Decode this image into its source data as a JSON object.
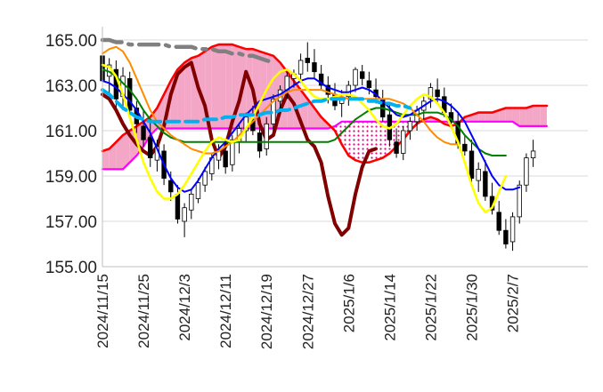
{
  "chart_data": {
    "type": "line",
    "subtype": "ichimoku-candlestick",
    "title": "",
    "xlabel": "",
    "ylabel": "",
    "ylim": [
      155.0,
      165.0
    ],
    "grid": true,
    "legend": "none",
    "y_ticks": [
      "165.00",
      "163.00",
      "161.00",
      "159.00",
      "157.00",
      "155.00"
    ],
    "x_ticks": [
      "2024/11/15",
      "2024/11/25",
      "2024/12/3",
      "2024/12/11",
      "2024/12/19",
      "2024/12/27",
      "2025/1/6",
      "2025/1/14",
      "2025/1/22",
      "2025/1/30",
      "2025/2/7"
    ],
    "x_tick_index": [
      0,
      6,
      12,
      18,
      24,
      30,
      36,
      42,
      48,
      54,
      60
    ],
    "n_points": 72,
    "colors": {
      "cloud_bullish": "#f4a6c6",
      "cloud_bearish": "#f4a6c6",
      "senkou_a": "#ff0000",
      "senkou_b": "#ff00ff",
      "tenkan": "#0000ff",
      "kijun": "#008000",
      "chikou": "#800000",
      "ma_short": "#ffff00",
      "ma_mid": "#ff8c00",
      "ma_long": "#808080",
      "ma_dashed": "#00b0f0",
      "candle_up": "#ffffff",
      "candle_down": "#000000"
    },
    "candles": [
      [
        164.3,
        164.6,
        162.8,
        163.2
      ],
      [
        163.4,
        164.2,
        162.6,
        163.9
      ],
      [
        163.7,
        164.1,
        162.0,
        162.4
      ],
      [
        162.5,
        163.8,
        161.9,
        163.4
      ],
      [
        163.3,
        163.6,
        161.6,
        161.9
      ],
      [
        162.0,
        162.3,
        160.9,
        161.3
      ],
      [
        161.2,
        161.9,
        160.3,
        160.6
      ],
      [
        160.7,
        161.4,
        159.4,
        159.8
      ],
      [
        159.7,
        160.6,
        159.2,
        160.3
      ],
      [
        160.1,
        160.4,
        158.6,
        158.9
      ],
      [
        158.8,
        159.2,
        157.9,
        158.3
      ],
      [
        158.2,
        158.6,
        156.9,
        157.1
      ],
      [
        157.0,
        157.8,
        156.3,
        157.6
      ],
      [
        157.5,
        158.4,
        157.1,
        158.2
      ],
      [
        158.0,
        158.9,
        157.8,
        158.7
      ],
      [
        158.6,
        159.4,
        158.3,
        159.2
      ],
      [
        159.1,
        160.0,
        158.8,
        159.8
      ],
      [
        159.7,
        160.4,
        159.3,
        160.1
      ],
      [
        160.1,
        160.5,
        159.1,
        159.4
      ],
      [
        159.5,
        160.8,
        159.2,
        160.6
      ],
      [
        160.5,
        161.3,
        160.0,
        161.1
      ],
      [
        161.0,
        161.8,
        160.5,
        161.6
      ],
      [
        161.5,
        162.1,
        160.8,
        161.0
      ],
      [
        160.9,
        161.2,
        159.8,
        160.1
      ],
      [
        160.2,
        161.6,
        159.9,
        161.3
      ],
      [
        161.3,
        162.6,
        161.0,
        162.4
      ],
      [
        162.3,
        163.0,
        161.8,
        162.8
      ],
      [
        162.8,
        163.6,
        162.4,
        163.4
      ],
      [
        163.3,
        163.7,
        162.9,
        163.5
      ],
      [
        163.5,
        164.4,
        163.1,
        164.1
      ],
      [
        164.2,
        164.9,
        163.6,
        164.0
      ],
      [
        164.0,
        164.6,
        163.3,
        163.6
      ],
      [
        163.5,
        163.9,
        162.8,
        163.0
      ],
      [
        163.0,
        163.4,
        162.2,
        162.6
      ],
      [
        162.6,
        163.1,
        161.9,
        162.1
      ],
      [
        162.2,
        162.8,
        161.6,
        162.4
      ],
      [
        162.5,
        163.2,
        162.1,
        163.0
      ],
      [
        163.0,
        163.8,
        162.7,
        163.7
      ],
      [
        163.6,
        163.9,
        163.0,
        163.3
      ],
      [
        163.2,
        163.6,
        162.6,
        162.9
      ],
      [
        162.8,
        163.3,
        162.2,
        162.5
      ],
      [
        162.4,
        162.8,
        161.4,
        161.6
      ],
      [
        161.7,
        162.2,
        160.3,
        160.6
      ],
      [
        160.5,
        161.1,
        159.8,
        160.0
      ],
      [
        160.0,
        161.2,
        159.7,
        161.0
      ],
      [
        161.0,
        161.6,
        160.6,
        161.4
      ],
      [
        161.4,
        162.1,
        161.0,
        161.9
      ],
      [
        161.9,
        162.5,
        161.5,
        162.3
      ],
      [
        162.4,
        163.1,
        162.0,
        162.9
      ],
      [
        162.8,
        163.3,
        162.2,
        162.5
      ],
      [
        162.5,
        162.9,
        161.6,
        161.8
      ],
      [
        161.8,
        162.2,
        161.1,
        161.4
      ],
      [
        161.4,
        161.8,
        160.2,
        160.4
      ],
      [
        160.4,
        160.8,
        159.9,
        160.1
      ],
      [
        160.1,
        160.6,
        158.6,
        158.9
      ],
      [
        158.8,
        159.6,
        158.3,
        159.3
      ],
      [
        159.2,
        159.7,
        157.9,
        158.1
      ],
      [
        158.1,
        158.7,
        157.3,
        157.5
      ],
      [
        157.4,
        157.9,
        156.4,
        156.6
      ],
      [
        156.6,
        157.1,
        155.8,
        156.0
      ],
      [
        156.1,
        157.4,
        155.7,
        157.2
      ],
      [
        157.2,
        158.8,
        156.9,
        158.6
      ],
      [
        158.6,
        160.0,
        158.3,
        159.8
      ],
      [
        159.8,
        160.6,
        159.4,
        160.1
      ]
    ],
    "series": [
      {
        "key": "tenkan",
        "values": [
          163.2,
          163.1,
          162.9,
          162.6,
          162.3,
          161.9,
          161.4,
          160.9,
          160.2,
          159.5,
          158.9,
          158.5,
          158.3,
          158.4,
          158.8,
          159.3,
          159.8,
          160.2,
          160.5,
          160.9,
          161.3,
          161.7,
          162.0,
          162.3,
          162.4,
          162.5,
          162.6,
          162.8,
          163.0,
          163.2,
          163.3,
          163.3,
          163.1,
          162.9,
          162.8,
          162.7,
          162.7,
          162.8,
          162.9,
          162.8,
          162.6,
          162.3,
          162.0,
          161.7,
          161.6,
          161.7,
          161.9,
          162.1,
          162.3,
          162.4,
          162.3,
          162.1,
          161.8,
          161.4,
          160.8,
          160.2,
          159.6,
          159.0,
          158.6,
          158.4,
          158.4,
          158.5
        ]
      },
      {
        "key": "kijun",
        "values": [
          163.7,
          163.6,
          163.4,
          163.1,
          162.8,
          162.4,
          161.9,
          161.5,
          161.2,
          160.9,
          160.7,
          160.6,
          160.5,
          160.5,
          160.5,
          160.5,
          160.5,
          160.5,
          160.5,
          160.5,
          160.5,
          160.5,
          160.5,
          160.5,
          160.5,
          160.5,
          160.5,
          160.5,
          160.5,
          160.5,
          160.5,
          160.5,
          160.5,
          160.5,
          160.6,
          160.9,
          161.2,
          161.5,
          161.7,
          161.9,
          162.0,
          162.0,
          161.9,
          161.8,
          161.7,
          161.7,
          161.7,
          161.8,
          161.8,
          161.8,
          161.7,
          161.5,
          161.2,
          160.8,
          160.5,
          160.2,
          160.0,
          159.9,
          159.9,
          159.9
        ]
      },
      {
        "key": "senkou_a",
        "values": [
          160.1,
          160.2,
          160.5,
          160.8,
          161.0,
          161.2,
          161.4,
          161.6,
          162.0,
          162.6,
          163.2,
          163.7,
          164.0,
          164.2,
          164.3,
          164.5,
          164.7,
          164.8,
          164.8,
          164.8,
          164.7,
          164.6,
          164.6,
          164.5,
          164.4,
          164.3,
          164.0,
          163.6,
          163.2,
          162.8,
          162.4,
          162.0,
          161.6,
          161.3,
          161.0,
          160.4,
          159.9,
          159.7,
          159.6,
          159.6,
          159.7,
          159.8,
          160.0,
          160.3,
          160.6,
          161.0,
          161.3,
          161.5,
          161.6,
          161.5,
          161.3,
          161.2,
          161.3,
          161.6,
          161.7,
          161.8,
          161.8,
          161.8,
          161.9,
          162.0,
          162.0,
          162.0,
          162.0,
          162.1,
          162.1,
          162.1
        ]
      },
      {
        "key": "senkou_b",
        "values": [
          159.3,
          159.3,
          159.3,
          159.3,
          159.6,
          159.9,
          160.3,
          160.8,
          161.1,
          161.1,
          161.1,
          161.1,
          161.1,
          161.1,
          161.1,
          161.1,
          161.1,
          161.1,
          161.1,
          161.1,
          161.1,
          161.1,
          161.1,
          161.1,
          161.1,
          161.1,
          161.1,
          161.1,
          161.1,
          161.1,
          161.1,
          161.1,
          161.1,
          161.1,
          161.2,
          161.4,
          161.4,
          161.4,
          161.4,
          161.4,
          161.4,
          161.4,
          161.4,
          161.4,
          161.4,
          161.4,
          161.4,
          161.4,
          161.4,
          161.4,
          161.4,
          161.4,
          161.4,
          161.4,
          161.4,
          161.4,
          161.4,
          161.4,
          161.4,
          161.4,
          161.4,
          161.2,
          161.2,
          161.2,
          161.2,
          161.2
        ]
      },
      {
        "key": "chikou",
        "values": [
          162.6,
          162.4,
          161.9,
          161.3,
          160.8,
          160.4,
          160.1,
          159.9,
          160.3,
          161.2,
          162.6,
          163.5,
          163.8,
          164.0,
          162.9,
          162.1,
          160.6,
          159.8,
          160.3,
          161.4,
          162.3,
          163.6,
          162.8,
          161.3,
          160.6,
          160.8,
          161.9,
          162.6,
          162.2,
          161.4,
          160.6,
          160.3,
          159.6,
          158.1,
          156.9,
          156.4,
          156.7,
          158.2,
          159.4,
          160.1,
          160.2
        ]
      },
      {
        "key": "ma_short",
        "values": [
          163.9,
          163.8,
          163.4,
          162.6,
          161.6,
          160.6,
          159.6,
          158.9,
          158.3,
          158.0,
          158.0,
          158.2,
          158.6,
          159.1,
          159.6,
          160.1,
          160.5,
          160.7,
          160.6,
          160.5,
          160.6,
          161.1,
          161.6,
          162.2,
          162.8,
          163.3,
          163.6,
          163.7,
          163.5,
          163.2,
          162.8,
          162.5,
          162.4,
          162.4,
          162.5,
          162.6,
          162.6,
          162.5,
          162.2,
          161.9,
          161.5,
          161.2,
          161.1,
          161.3,
          161.7,
          162.1,
          162.4,
          162.6,
          162.5,
          162.2,
          161.8,
          161.2,
          160.5,
          159.6,
          158.6,
          157.8,
          157.4,
          157.6,
          158.3,
          159.0
        ]
      },
      {
        "key": "ma_mid",
        "values": [
          164.4,
          164.6,
          164.7,
          164.5,
          164.0,
          163.3,
          162.6,
          161.9,
          161.4,
          161.1,
          160.8,
          160.6,
          160.4,
          160.2,
          160.1,
          160.0,
          160.0,
          160.1,
          160.3,
          160.5,
          160.8,
          161.1,
          161.4,
          161.7,
          162.0,
          162.3,
          162.5,
          162.7,
          162.8,
          162.8,
          162.8,
          162.8,
          162.8,
          162.7,
          162.6,
          162.5,
          162.4,
          162.4,
          162.4,
          162.4,
          162.4,
          162.4,
          162.4,
          162.3,
          162.2,
          162.0,
          161.7,
          161.4,
          161.0,
          160.7,
          160.5,
          160.4,
          160.4
        ]
      },
      {
        "key": "ma_dashed",
        "values": [
          162.8,
          162.6,
          162.3,
          162.0,
          161.8,
          161.6,
          161.5,
          161.4,
          161.4,
          161.4,
          161.4,
          161.4,
          161.4,
          161.4,
          161.4,
          161.5,
          161.5,
          161.5,
          161.6,
          161.6,
          161.7,
          161.7,
          161.7,
          161.7,
          161.8,
          161.8,
          161.9,
          161.9,
          162.0,
          162.1,
          162.2,
          162.3,
          162.3,
          162.4,
          162.4,
          162.4,
          162.4,
          162.4,
          162.4,
          162.3,
          162.3,
          162.2,
          162.2,
          162.1,
          162.1,
          162.0
        ]
      },
      {
        "key": "ma_long",
        "values": [
          165.0,
          165.0,
          164.9,
          164.9,
          164.8,
          164.8,
          164.8,
          164.8,
          164.8,
          164.8,
          164.7,
          164.7,
          164.7,
          164.7,
          164.6,
          164.6,
          164.6,
          164.5,
          164.5,
          164.4,
          164.4,
          164.3,
          164.3,
          164.2,
          164.1,
          164.0
        ]
      }
    ]
  }
}
